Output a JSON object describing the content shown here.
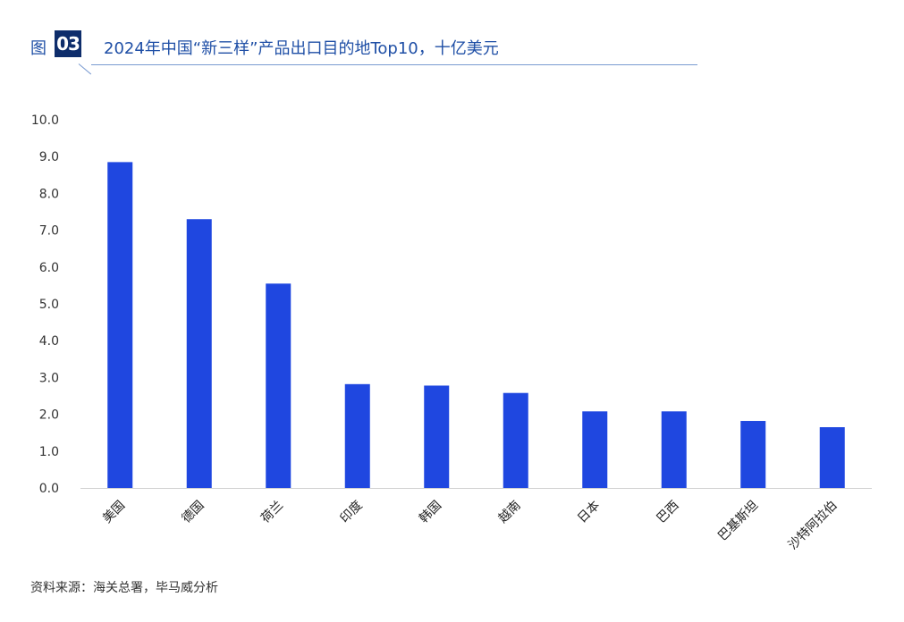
{
  "header": {
    "figure_label": "图",
    "figure_number": "03",
    "title": "2024年中国“新三样”产品出口目的地Top10，十亿美元"
  },
  "source": "资料来源：海关总署，毕马威分析",
  "colors": {
    "bar": "#1f47e0",
    "title": "#1f4fa6",
    "badge": "#0e2d6b",
    "axis_text": "#333333"
  },
  "chart_data": {
    "type": "bar",
    "categories": [
      "美国",
      "德国",
      "荷兰",
      "印度",
      "韩国",
      "越南",
      "日本",
      "巴西",
      "巴基斯坦",
      "沙特阿拉伯"
    ],
    "values": [
      8.85,
      7.3,
      5.55,
      2.82,
      2.78,
      2.58,
      2.08,
      2.08,
      1.82,
      1.65
    ],
    "title": "2024年中国“新三样”产品出口目的地Top10，十亿美元",
    "xlabel": "",
    "ylabel": "",
    "ylim": [
      0,
      10
    ],
    "yticks": [
      "0.0",
      "1.0",
      "2.0",
      "3.0",
      "4.0",
      "5.0",
      "6.0",
      "7.0",
      "8.0",
      "9.0",
      "10.0"
    ],
    "grid": false,
    "legend": "none"
  }
}
